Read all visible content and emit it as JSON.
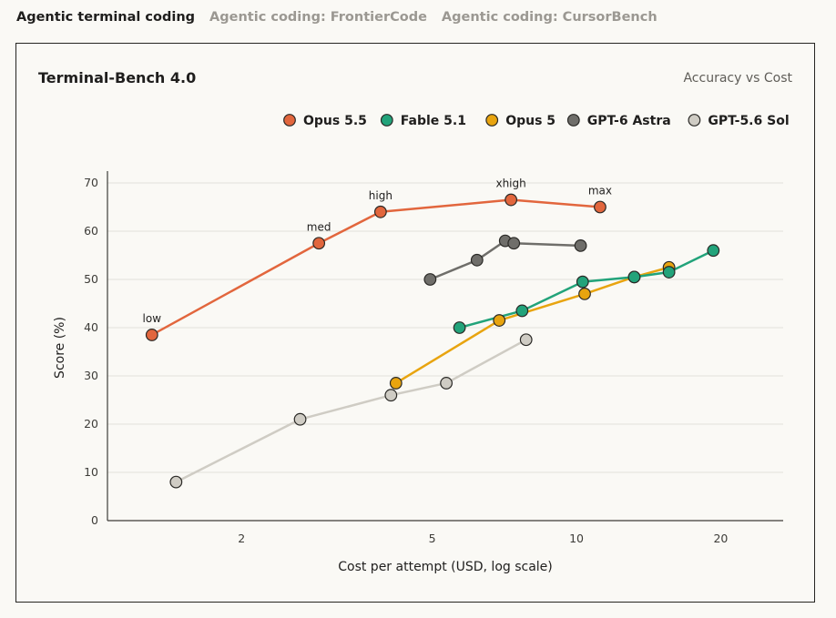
{
  "tabs": [
    {
      "label": "Agentic terminal coding",
      "active": true
    },
    {
      "label": "Agentic coding: FrontierCode",
      "active": false
    },
    {
      "label": "Agentic coding: CursorBench",
      "active": false
    }
  ],
  "chart_data": {
    "type": "line",
    "title": "Terminal-Bench 4.0",
    "subtitle": "Accuracy vs Cost",
    "xlabel": "Cost per attempt (USD, log scale)",
    "ylabel": "Score (%)",
    "x_scale": "log",
    "xlim": [
      1.05,
      27
    ],
    "ylim": [
      0,
      70
    ],
    "x_ticks": [
      2,
      5,
      10,
      20
    ],
    "y_ticks": [
      0,
      10,
      20,
      30,
      40,
      50,
      60,
      70
    ],
    "grid": "horizontal",
    "legend_position": "top-right",
    "series": [
      {
        "name": "Opus 5.5",
        "color": "#e2663d",
        "points": [
          {
            "x": 1.3,
            "y": 38.5,
            "label": "low"
          },
          {
            "x": 2.9,
            "y": 57.5,
            "label": "med"
          },
          {
            "x": 3.9,
            "y": 64.0,
            "label": "high"
          },
          {
            "x": 7.3,
            "y": 66.5,
            "label": "xhigh"
          },
          {
            "x": 11.2,
            "y": 65.0,
            "label": "max"
          }
        ]
      },
      {
        "name": "Fable 5.1",
        "color": "#22a37a",
        "points": [
          {
            "x": 5.7,
            "y": 40.0
          },
          {
            "x": 7.7,
            "y": 43.5
          },
          {
            "x": 10.3,
            "y": 49.5
          },
          {
            "x": 13.2,
            "y": 50.5
          },
          {
            "x": 15.6,
            "y": 51.5
          },
          {
            "x": 19.3,
            "y": 56.0
          }
        ]
      },
      {
        "name": "Opus 5",
        "color": "#e8a40f",
        "points": [
          {
            "x": 4.2,
            "y": 28.5
          },
          {
            "x": 6.9,
            "y": 41.5
          },
          {
            "x": 10.4,
            "y": 47.0
          },
          {
            "x": 13.2,
            "y": 50.5
          },
          {
            "x": 15.6,
            "y": 52.5
          }
        ]
      },
      {
        "name": "GPT-6 Astra",
        "color": "#6f6e6a",
        "points": [
          {
            "x": 4.95,
            "y": 50.0
          },
          {
            "x": 6.2,
            "y": 54.0
          },
          {
            "x": 7.1,
            "y": 58.0
          },
          {
            "x": 7.4,
            "y": 57.5
          },
          {
            "x": 10.2,
            "y": 57.0
          }
        ]
      },
      {
        "name": "GPT-5.6 Sol",
        "color": "#cfccc4",
        "points": [
          {
            "x": 1.46,
            "y": 8.0
          },
          {
            "x": 2.65,
            "y": 21.0
          },
          {
            "x": 4.1,
            "y": 26.0
          },
          {
            "x": 5.35,
            "y": 28.5
          },
          {
            "x": 7.85,
            "y": 37.5
          }
        ]
      }
    ]
  }
}
